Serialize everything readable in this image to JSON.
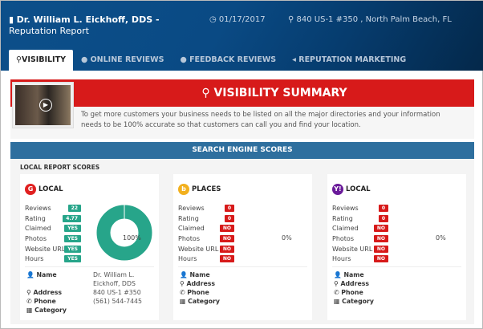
{
  "header": {
    "title_bold": "Dr. William L. Eickhoff, DDS -",
    "title_rest": " Reputation Report",
    "date": "01/17/2017",
    "address": "840 US-1 #350 , North Palm Beach, FL"
  },
  "tabs": [
    {
      "label": "VISIBILITY"
    },
    {
      "label": "ONLINE REVIEWS"
    },
    {
      "label": "FEEDBACK REVIEWS"
    },
    {
      "label": "REPUTATION MARKETING"
    }
  ],
  "summary": {
    "title": "VISIBILITY SUMMARY",
    "text": "To get more customers your business needs to be listed on all the major directories and your information needs to be 100% accurate so that customers can call you and find your location."
  },
  "search_engine_title": "SEARCH ENGINE SCORES",
  "local_report_title": "LOCAL REPORT SCORES",
  "labels": {
    "reviews": "Reviews",
    "rating": "Rating",
    "claimed": "Claimed",
    "photos": "Photos",
    "website": "Website URL",
    "hours": "Hours",
    "name": "Name",
    "address": "Address",
    "phone": "Phone",
    "category": "Category"
  },
  "cards": [
    {
      "title": "LOCAL",
      "logo": "G",
      "color": "#e02020",
      "reviews": "22",
      "rating": "4.77",
      "claimed": "YES",
      "photos": "YES",
      "website": "YES",
      "hours": "YES",
      "percent": "100%",
      "score": 100,
      "name": "Dr. William L. Eickhoff, DDS",
      "address": "840 US-1 #350",
      "phone": "(561) 544-7445",
      "category": ""
    },
    {
      "title": "PLACES",
      "logo": "b",
      "color": "#f2b01e",
      "reviews": "0",
      "rating": "0",
      "claimed": "NO",
      "photos": "NO",
      "website": "NO",
      "hours": "NO",
      "percent": "0%",
      "score": 0
    },
    {
      "title": "LOCAL",
      "logo": "Y!",
      "color": "#6a1b9a",
      "reviews": "0",
      "rating": "0",
      "claimed": "NO",
      "photos": "NO",
      "website": "NO",
      "hours": "NO",
      "percent": "0%",
      "score": 0
    }
  ]
}
